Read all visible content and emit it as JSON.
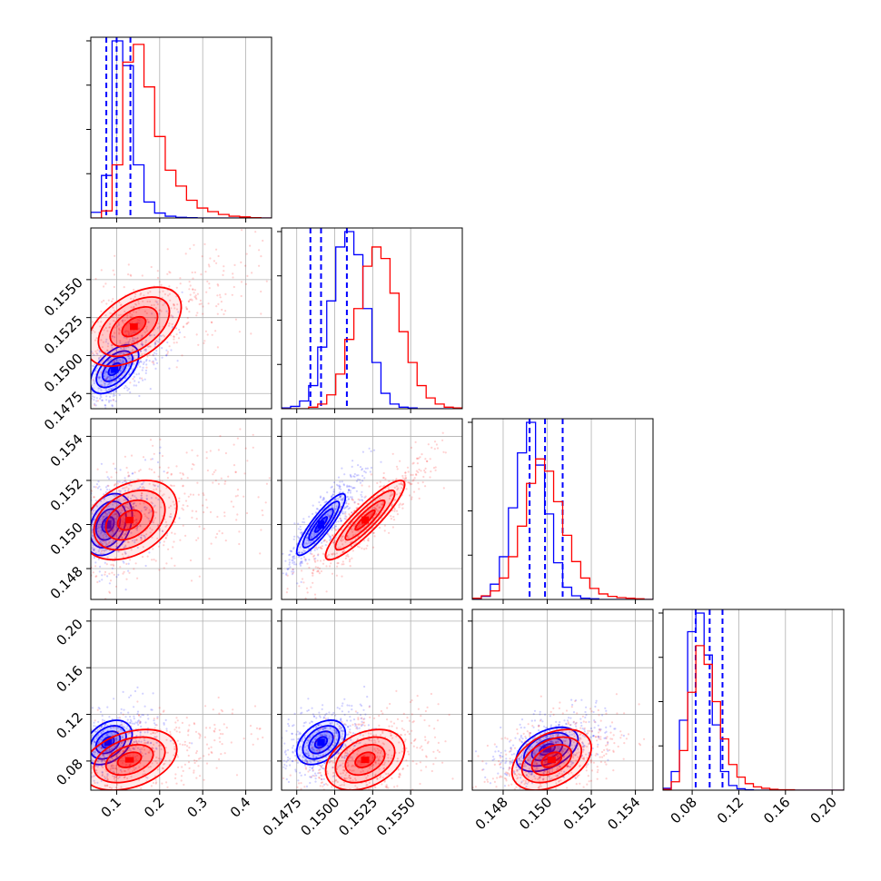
{
  "chart_data": {
    "type": "corner",
    "grid": true,
    "colors": {
      "blue": "#0000ff",
      "red": "#ff0000"
    },
    "parameters": [
      {
        "range": [
          0.04,
          0.46
        ],
        "ticks": [
          0.1,
          0.2,
          0.3,
          0.4
        ],
        "tick_labels": [
          "0.1",
          "0.2",
          "0.3",
          "0.4"
        ]
      },
      {
        "range": [
          0.1465,
          0.1584
        ],
        "ticks": [
          0.1475,
          0.15,
          0.1525,
          0.155
        ],
        "tick_labels": [
          "0.1475",
          "0.1500",
          "0.1525",
          "0.1550"
        ]
      },
      {
        "range": [
          0.1466,
          0.1548
        ],
        "ticks": [
          0.148,
          0.15,
          0.152,
          0.154
        ],
        "tick_labels": [
          "0.148",
          "0.150",
          "0.152",
          "0.154"
        ]
      },
      {
        "range": [
          0.055,
          0.21
        ],
        "ticks": [
          0.08,
          0.12,
          0.16,
          0.2
        ],
        "tick_labels": [
          "0.08",
          "0.12",
          "0.16",
          "0.20"
        ]
      }
    ],
    "series": [
      {
        "color": "blue",
        "quantiles": [
          [
            0.076,
            0.1,
            0.132
          ],
          [
            0.1484,
            0.1491,
            0.1508
          ],
          [
            0.1492,
            0.1499,
            0.1507
          ],
          [
            0.083,
            0.095,
            0.106
          ]
        ],
        "means": [
          0.1,
          0.1491,
          0.15,
          0.095
        ],
        "sds": [
          0.025,
          0.0008,
          0.0007,
          0.0095
        ],
        "histograms": [
          [
            16,
            120,
            500,
            430,
            150,
            45,
            14,
            5,
            2,
            1,
            0,
            0,
            0,
            0,
            0,
            0,
            0
          ],
          [
            1,
            3,
            10,
            30,
            80,
            140,
            210,
            230,
            200,
            130,
            60,
            20,
            6,
            2,
            1,
            0,
            0,
            0,
            0,
            0
          ],
          [
            1,
            5,
            25,
            70,
            150,
            240,
            290,
            220,
            140,
            60,
            20,
            6,
            2,
            1,
            0,
            0,
            0,
            0,
            0,
            0
          ],
          [
            4,
            40,
            150,
            340,
            380,
            290,
            140,
            40,
            10,
            3,
            1,
            0,
            0,
            0,
            0,
            0,
            0,
            0,
            0,
            0,
            0,
            0
          ]
        ]
      },
      {
        "color": "red",
        "quantiles": null,
        "means": [
          0.165,
          0.152,
          0.1502,
          0.083
        ],
        "sds": [
          0.055,
          0.0013,
          0.0009,
          0.013
        ],
        "histograms": [
          [
            0,
            20,
            150,
            440,
            490,
            370,
            230,
            135,
            90,
            50,
            28,
            18,
            10,
            5,
            3,
            1,
            0
          ],
          [
            0,
            0,
            0,
            2,
            6,
            18,
            45,
            90,
            130,
            185,
            210,
            195,
            150,
            100,
            60,
            30,
            14,
            6,
            2,
            1
          ],
          [
            2,
            6,
            14,
            35,
            70,
            120,
            190,
            230,
            210,
            160,
            105,
            62,
            35,
            18,
            9,
            5,
            3,
            2,
            1,
            0
          ],
          [
            2,
            18,
            85,
            210,
            310,
            270,
            190,
            110,
            55,
            28,
            14,
            7,
            4,
            2,
            1,
            1,
            0,
            0,
            0,
            0,
            0,
            0
          ]
        ]
      }
    ],
    "joint": [
      {
        "x": 0,
        "y": 1,
        "blue": {
          "center": [
            0.095,
            0.1491
          ],
          "sd": [
            0.028,
            0.0008
          ],
          "rho": 0.55
        },
        "red": {
          "center": [
            0.14,
            0.1519
          ],
          "sd": [
            0.055,
            0.0013
          ],
          "rho": 0.5
        }
      },
      {
        "x": 0,
        "y": 2,
        "blue": {
          "center": [
            0.08,
            0.15
          ],
          "sd": [
            0.028,
            0.0007
          ],
          "rho": 0.3
        },
        "red": {
          "center": [
            0.13,
            0.1502
          ],
          "sd": [
            0.055,
            0.0009
          ],
          "rho": 0.35
        }
      },
      {
        "x": 1,
        "y": 2,
        "blue": {
          "center": [
            0.1491,
            0.15
          ],
          "sd": [
            0.0008,
            0.0007
          ],
          "rho": 0.88
        },
        "red": {
          "center": [
            0.152,
            0.1502
          ],
          "sd": [
            0.0013,
            0.0009
          ],
          "rho": 0.9
        }
      },
      {
        "x": 0,
        "y": 3,
        "blue": {
          "center": [
            0.08,
            0.096
          ],
          "sd": [
            0.028,
            0.0095
          ],
          "rho": 0.35
        },
        "red": {
          "center": [
            0.13,
            0.081
          ],
          "sd": [
            0.055,
            0.013
          ],
          "rho": 0.35
        }
      },
      {
        "x": 1,
        "y": 3,
        "blue": {
          "center": [
            0.1491,
            0.096
          ],
          "sd": [
            0.0008,
            0.0095
          ],
          "rho": 0.4
        },
        "red": {
          "center": [
            0.152,
            0.081
          ],
          "sd": [
            0.0013,
            0.013
          ],
          "rho": 0.35
        }
      },
      {
        "x": 2,
        "y": 3,
        "blue": {
          "center": [
            0.15,
            0.09
          ],
          "sd": [
            0.0007,
            0.0095
          ],
          "rho": 0.45
        },
        "red": {
          "center": [
            0.1502,
            0.081
          ],
          "sd": [
            0.0009,
            0.013
          ],
          "rho": 0.4
        }
      }
    ],
    "contour_levels_sigma": [
      0.5,
      1.0,
      1.5,
      2.0
    ]
  }
}
